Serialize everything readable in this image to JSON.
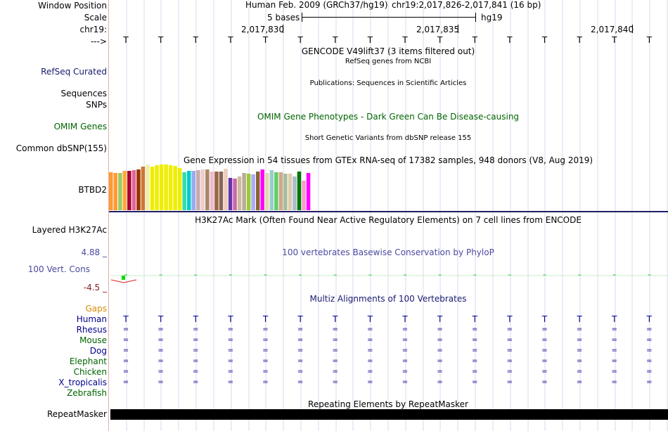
{
  "header": {
    "window_position_label": "Window Position",
    "scale_label": "Scale",
    "chrom_label": "chr19:",
    "strand_label": "--->",
    "assembly": "Human Feb. 2009 (GRCh37/hg19)",
    "position": "chr19:2,017,826-2,017,841 (16 bp)",
    "scale_text": "5 bases",
    "db": "hg19",
    "ruler_ticks": [
      "2,017,830",
      "2,017,835",
      "2,017,840"
    ]
  },
  "bases": [
    "T",
    "T",
    "T",
    "T",
    "T",
    "T",
    "T",
    "T",
    "T",
    "T",
    "T",
    "T",
    "T",
    "T",
    "T",
    "T"
  ],
  "tracks": {
    "gencode_title": "GENCODE V49lift37 (3 items filtered out)",
    "refseq_label": "RefSeq Curated",
    "refseq_title": "RefSeq genes from NCBI",
    "sequences_label": "Sequences",
    "publications_title": "Publications: Sequences in Scientific Articles",
    "snps_label": "SNPs",
    "omim_label": "OMIM Genes",
    "omim_title": "OMIM Gene Phenotypes - Dark Green Can Be Disease-causing",
    "dbsnp_title": "Short Genetic Variants from dbSNP release 155",
    "dbsnp_label": "Common dbSNP(155)",
    "gtex_title": "Gene Expression in 54 tissues from GTEx RNA-seq of 17382 samples, 948 donors (V8, Aug 2019)",
    "gtex_gene": "BTBD2",
    "h3k27ac_label": "Layered H3K27Ac",
    "h3k27ac_title": "H3K27Ac Mark (Often Found Near Active Regulatory Elements) on 7 cell lines from ENCODE",
    "cons_max": "4.88 _",
    "cons_title": "100 vertebrates Basewise Conservation by PhyloP",
    "cons_label": "100 Vert. Cons",
    "cons_min": "-4.5 _",
    "multiz_title": "Multiz Alignments of 100 Vertebrates",
    "gaps_label": "Gaps",
    "species": [
      "Human",
      "Rhesus",
      "Mouse",
      "Dog",
      "Elephant",
      "Chicken",
      "X_tropicalis",
      "Zebrafish"
    ],
    "repeat_title": "Repeating Elements by RepeatMasker",
    "repeat_label": "RepeatMasker"
  },
  "colors": {
    "navy": "#191970",
    "green": "#006400",
    "orange": "#d98c00",
    "cons_blue": "#4a4aa0",
    "cons_red": "#8b1a1a",
    "divider": "#1f1f66",
    "grid": "#d8d8f0"
  },
  "gtex_values": [
    54,
    53,
    53,
    56,
    56,
    57,
    58,
    62,
    65,
    62,
    64,
    65,
    65,
    64,
    63,
    60,
    54,
    56,
    56,
    57,
    58,
    58,
    55,
    55,
    55,
    59,
    46,
    45,
    48,
    53,
    52,
    51,
    55,
    58,
    53,
    57,
    54,
    54,
    52,
    52,
    48,
    55,
    42,
    53
  ],
  "gtex_colors": [
    "#FF9933",
    "#FF9933",
    "#99CC66",
    "#FFAA33",
    "#AA0033",
    "#DD6699",
    "#993300",
    "#CC7733",
    "#EEEEAA",
    "#EEEE00",
    "#EEEE00",
    "#EEEE00",
    "#EEEE00",
    "#EEEE00",
    "#EEEE00",
    "#EEEE00",
    "#33DDAA",
    "#00CCCC",
    "#99AAEE",
    "#CCAAAA",
    "#EECCCC",
    "#AA8866",
    "#EEBBCC",
    "#996644",
    "#886655",
    "#EECCBB",
    "#6633AA",
    "#CC66AA",
    "#CCBB99",
    "#BBAA99",
    "#99CC33",
    "#AAAAFF",
    "#886633",
    "#FF00FF",
    "#DDDDAA",
    "#99CCCC",
    "#66CC66",
    "#CCAA88",
    "#AABB99",
    "#DDCCAA",
    "#AABBCC",
    "#007700",
    "#FF99CC",
    "#FF00FF"
  ]
}
